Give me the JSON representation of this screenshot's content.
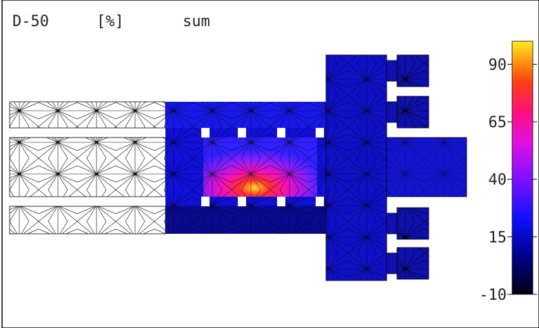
{
  "header": {
    "metric": "D-50",
    "unit": "[%]",
    "mode": "sum"
  },
  "colorbar": {
    "lim": [
      -10,
      100
    ],
    "ticks": [
      -10,
      15,
      40,
      65,
      90
    ]
  }
}
